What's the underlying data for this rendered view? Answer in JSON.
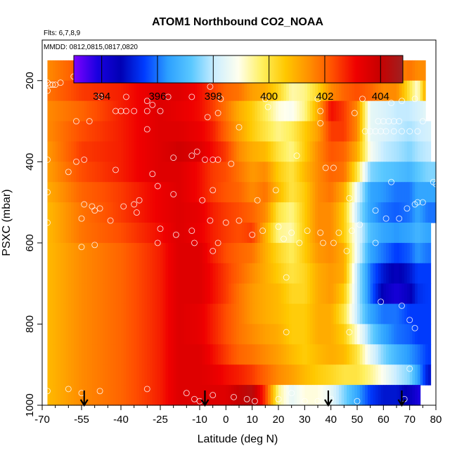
{
  "chart_data": {
    "type": "heatmap",
    "title": "ATOM1 Northbound CO2_NOAA",
    "subtitle_flights": "Flts: 6,7,8,9",
    "subtitle_dates": "MMDD: 0812,0815,0817,0820",
    "xlabel": "Latitude (deg N)",
    "ylabel": "PSXC (mbar)",
    "xlim": [
      -70,
      80
    ],
    "ylim": [
      1000,
      100
    ],
    "x_ticks": [
      -70,
      -55,
      -40,
      -25,
      -10,
      0,
      10,
      20,
      30,
      40,
      50,
      60,
      70,
      80
    ],
    "x_minor_ticks": [
      -65,
      -60,
      -50,
      -45,
      -35,
      -30,
      -20,
      -15,
      -5,
      5,
      15,
      25,
      35,
      45,
      55,
      65,
      75
    ],
    "y_ticks": [
      200,
      400,
      600,
      800,
      1000
    ],
    "colorbar": {
      "min": 393,
      "max": 404.8,
      "ticks": [
        394,
        396,
        398,
        400,
        402,
        404
      ],
      "colors": [
        "#7f00ff",
        "#1a00e0",
        "#0000b4",
        "#003cff",
        "#2ca0ff",
        "#5ac8ff",
        "#cceeff",
        "#ffffee",
        "#fff060",
        "#ffc800",
        "#ff9000",
        "#ff5000",
        "#f00000",
        "#c80000",
        "#a02020"
      ]
    },
    "pressure_levels": [
      175,
      225,
      275,
      325,
      375,
      425,
      475,
      525,
      575,
      625,
      675,
      725,
      775,
      825,
      875,
      925,
      975
    ],
    "latitude_nodes": [
      -68,
      -55,
      -40,
      -25,
      -18,
      -10,
      -5,
      0,
      5,
      10,
      15,
      20,
      25,
      30,
      35,
      40,
      45,
      50,
      55,
      60,
      65,
      70,
      73,
      77
    ],
    "co2_grid": [
      [
        401.5,
        402.3,
        402.4,
        402.5,
        402.5,
        402.5,
        402.0,
        401.8,
        401.8,
        401.3,
        401.0,
        400.2,
        399.5,
        399.2,
        399.8,
        401.0,
        401.8,
        401.5,
        401.5,
        401.5,
        401.5,
        401.8,
        401.5,
        401.5
      ],
      [
        401.8,
        402.5,
        402.8,
        403.5,
        403.5,
        403.0,
        402.5,
        402.0,
        401.8,
        401.2,
        401.0,
        400.3,
        399.3,
        399.5,
        400.3,
        401.5,
        402.0,
        402.3,
        402.0,
        401.5,
        401.5,
        400.0,
        399.0,
        401.8
      ],
      [
        401.5,
        402.0,
        402.8,
        403.5,
        403.3,
        403.0,
        402.5,
        401.8,
        401.0,
        400.5,
        399.8,
        399.0,
        398.8,
        399.5,
        401.0,
        403.0,
        402.5,
        401.5,
        398.5,
        398.3,
        398.0,
        398.0,
        398.2,
        398.5
      ],
      [
        401.5,
        402.3,
        402.8,
        403.5,
        403.5,
        403.2,
        402.8,
        402.0,
        401.2,
        400.5,
        400.0,
        399.5,
        399.8,
        400.5,
        401.2,
        402.5,
        402.5,
        401.5,
        398.5,
        398.3,
        398.0,
        397.8,
        398.0,
        398.2
      ],
      [
        401.3,
        402.5,
        402.8,
        403.5,
        403.8,
        403.5,
        403.0,
        402.5,
        401.5,
        401.0,
        400.8,
        400.0,
        399.5,
        400.5,
        401.5,
        402.2,
        402.0,
        401.0,
        398.8,
        398.0,
        397.8,
        397.5,
        397.8,
        398.0
      ],
      [
        401.2,
        402.3,
        402.8,
        403.5,
        403.5,
        403.0,
        402.5,
        402.3,
        401.8,
        401.3,
        401.5,
        400.5,
        400.0,
        400.8,
        401.5,
        402.0,
        401.8,
        400.0,
        397.5,
        397.2,
        397.0,
        396.8,
        397.2,
        397.5
      ],
      [
        401.0,
        402.0,
        402.5,
        403.2,
        403.5,
        403.0,
        402.5,
        402.2,
        402.0,
        401.5,
        401.8,
        400.8,
        400.0,
        400.5,
        401.5,
        401.8,
        401.0,
        398.5,
        396.5,
        396.3,
        396.0,
        396.0,
        396.5,
        396.5
      ],
      [
        400.8,
        401.8,
        402.5,
        403.2,
        403.5,
        403.3,
        402.8,
        402.5,
        402.3,
        402.0,
        401.5,
        400.0,
        399.5,
        400.5,
        401.5,
        401.5,
        400.5,
        398.0,
        396.5,
        396.0,
        395.8,
        396.0,
        396.5,
        396.0
      ],
      [
        400.8,
        401.8,
        402.3,
        403.0,
        403.5,
        403.2,
        402.8,
        402.5,
        402.3,
        402.5,
        401.0,
        399.5,
        399.3,
        400.5,
        401.5,
        401.5,
        400.5,
        398.5,
        397.0,
        396.5,
        396.3,
        396.5,
        396.8,
        396.5
      ],
      [
        400.8,
        401.5,
        402.0,
        402.8,
        403.5,
        403.5,
        402.8,
        402.3,
        402.0,
        401.8,
        401.0,
        400.3,
        399.8,
        400.5,
        401.3,
        401.5,
        401.0,
        398.5,
        396.5,
        396.0,
        395.5,
        395.8,
        396.3,
        396.0
      ],
      [
        400.8,
        401.5,
        402.0,
        402.8,
        403.5,
        403.5,
        403.0,
        402.5,
        402.0,
        401.5,
        401.0,
        400.5,
        400.0,
        400.3,
        401.0,
        401.3,
        401.0,
        398.0,
        396.0,
        395.0,
        394.5,
        395.0,
        395.5,
        395.5
      ],
      [
        400.8,
        401.5,
        402.0,
        402.8,
        403.5,
        403.5,
        403.0,
        402.5,
        401.8,
        401.3,
        401.0,
        400.8,
        400.3,
        400.3,
        401.0,
        401.3,
        400.5,
        398.0,
        396.0,
        394.5,
        394.0,
        394.5,
        395.3,
        395.5
      ],
      [
        400.8,
        401.5,
        402.0,
        402.8,
        403.5,
        403.3,
        402.8,
        402.3,
        401.8,
        401.3,
        401.0,
        400.8,
        400.5,
        400.5,
        401.0,
        401.0,
        400.0,
        398.0,
        396.5,
        396.0,
        396.0,
        395.5,
        395.5,
        395.5
      ],
      [
        400.8,
        401.5,
        402.0,
        402.8,
        403.5,
        403.3,
        402.8,
        402.3,
        401.8,
        401.5,
        401.2,
        401.0,
        400.5,
        400.5,
        401.0,
        401.0,
        400.5,
        399.0,
        397.5,
        396.5,
        396.0,
        395.8,
        395.5,
        395.5
      ],
      [
        400.8,
        401.5,
        402.0,
        402.8,
        403.5,
        403.5,
        403.0,
        402.5,
        402.0,
        401.8,
        401.5,
        401.2,
        400.8,
        400.5,
        400.8,
        401.0,
        400.8,
        400.0,
        398.5,
        397.5,
        396.8,
        396.3,
        396.0,
        395.5
      ],
      [
        400.8,
        401.5,
        402.0,
        402.8,
        403.5,
        403.5,
        403.3,
        403.0,
        402.8,
        402.5,
        402.0,
        401.5,
        401.2,
        400.8,
        400.5,
        400.3,
        400.0,
        400.0,
        399.5,
        398.8,
        398.0,
        397.5,
        396.5,
        395.0
      ],
      [
        400.8,
        401.5,
        402.0,
        402.8,
        403.5,
        403.5,
        403.5,
        403.5,
        404.0,
        404.3,
        402.5,
        399.5,
        398.5,
        399.0,
        399.0,
        398.5,
        397.5,
        396.5,
        395.5,
        395.0,
        395.0,
        394.5,
        394.0,
        393.0
      ]
    ],
    "observation_points": [
      [
        -68,
        205
      ],
      [
        -68,
        225
      ],
      [
        -67,
        210
      ],
      [
        -66,
        210
      ],
      [
        -65,
        210
      ],
      [
        -63,
        205
      ],
      [
        -58,
        190
      ],
      [
        -48,
        240
      ],
      [
        -38,
        240
      ],
      [
        -30,
        250
      ],
      [
        -28,
        260
      ],
      [
        -22,
        240
      ],
      [
        -13,
        240
      ],
      [
        -6,
        215
      ],
      [
        -2,
        245
      ],
      [
        15,
        245
      ],
      [
        35,
        245
      ],
      [
        45,
        195
      ],
      [
        52,
        245
      ],
      [
        63,
        255
      ],
      [
        67,
        250
      ],
      [
        72,
        245
      ],
      [
        -57,
        300
      ],
      [
        -52,
        300
      ],
      [
        -42,
        275
      ],
      [
        -40,
        275
      ],
      [
        -38,
        275
      ],
      [
        -35,
        275
      ],
      [
        -30,
        275
      ],
      [
        -25,
        275
      ],
      [
        -7,
        290
      ],
      [
        -3,
        280
      ],
      [
        16,
        265
      ],
      [
        36,
        275
      ],
      [
        49,
        280
      ],
      [
        58,
        300
      ],
      [
        60,
        300
      ],
      [
        62,
        300
      ],
      [
        64,
        300
      ],
      [
        66,
        300
      ],
      [
        75,
        300
      ],
      [
        -30,
        320
      ],
      [
        -20,
        390
      ],
      [
        -13,
        385
      ],
      [
        -11,
        375
      ],
      [
        -5,
        395
      ],
      [
        -3,
        395
      ],
      [
        5,
        315
      ],
      [
        36,
        305
      ],
      [
        53,
        325
      ],
      [
        55,
        325
      ],
      [
        57,
        325
      ],
      [
        59,
        325
      ],
      [
        61,
        325
      ],
      [
        64,
        325
      ],
      [
        67,
        325
      ],
      [
        70,
        325
      ],
      [
        73,
        325
      ],
      [
        -68,
        395
      ],
      [
        -57,
        400
      ],
      [
        -54,
        395
      ],
      [
        -42,
        420
      ],
      [
        -28,
        430
      ],
      [
        -8,
        395
      ],
      [
        2,
        405
      ],
      [
        27,
        385
      ],
      [
        38,
        415
      ],
      [
        41,
        415
      ],
      [
        63,
        450
      ],
      [
        79,
        450
      ],
      [
        80,
        455
      ],
      [
        -60,
        425
      ],
      [
        -68,
        475
      ],
      [
        -54,
        505
      ],
      [
        -51,
        510
      ],
      [
        -48,
        515
      ],
      [
        -35,
        505
      ],
      [
        -33,
        495
      ],
      [
        -26,
        460
      ],
      [
        -20,
        480
      ],
      [
        -9,
        495
      ],
      [
        -5,
        470
      ],
      [
        12,
        495
      ],
      [
        19,
        470
      ],
      [
        47,
        490
      ],
      [
        57,
        520
      ],
      [
        61,
        540
      ],
      [
        66,
        540
      ],
      [
        69,
        515
      ],
      [
        72,
        505
      ],
      [
        73,
        500
      ],
      [
        75,
        500
      ],
      [
        -68,
        550
      ],
      [
        -55,
        540
      ],
      [
        -50,
        520
      ],
      [
        -44,
        545
      ],
      [
        -39,
        510
      ],
      [
        -34,
        525
      ],
      [
        -25,
        565
      ],
      [
        -19,
        580
      ],
      [
        -13,
        570
      ],
      [
        -6,
        545
      ],
      [
        0,
        550
      ],
      [
        5,
        545
      ],
      [
        10,
        580
      ],
      [
        20,
        560
      ],
      [
        25,
        575
      ],
      [
        31,
        570
      ],
      [
        36,
        575
      ],
      [
        43,
        575
      ],
      [
        48,
        570
      ],
      [
        51,
        555
      ],
      [
        -55,
        610
      ],
      [
        -50,
        605
      ],
      [
        -26,
        600
      ],
      [
        -12,
        600
      ],
      [
        -5,
        620
      ],
      [
        -3,
        600
      ],
      [
        14,
        570
      ],
      [
        22,
        590
      ],
      [
        28,
        600
      ],
      [
        37,
        600
      ],
      [
        41,
        600
      ],
      [
        46,
        620
      ],
      [
        57,
        600
      ],
      [
        23,
        685
      ],
      [
        59,
        745
      ],
      [
        67,
        755
      ],
      [
        70,
        790
      ],
      [
        72,
        810
      ],
      [
        23,
        820
      ],
      [
        47,
        820
      ],
      [
        80,
        900
      ],
      [
        70,
        910
      ],
      [
        -68,
        965
      ],
      [
        -60,
        960
      ],
      [
        -55,
        970
      ],
      [
        -48,
        965
      ],
      [
        -30,
        960
      ],
      [
        -15,
        970
      ],
      [
        -12,
        985
      ],
      [
        -10,
        990
      ],
      [
        -5,
        975
      ],
      [
        3,
        980
      ],
      [
        8,
        985
      ],
      [
        11,
        990
      ],
      [
        20,
        985
      ],
      [
        25,
        970
      ],
      [
        30,
        990
      ],
      [
        35,
        990
      ],
      [
        40,
        985
      ],
      [
        50,
        990
      ],
      [
        68,
        985
      ]
    ],
    "arrows_latitude": [
      -54,
      -8,
      39,
      67
    ]
  }
}
